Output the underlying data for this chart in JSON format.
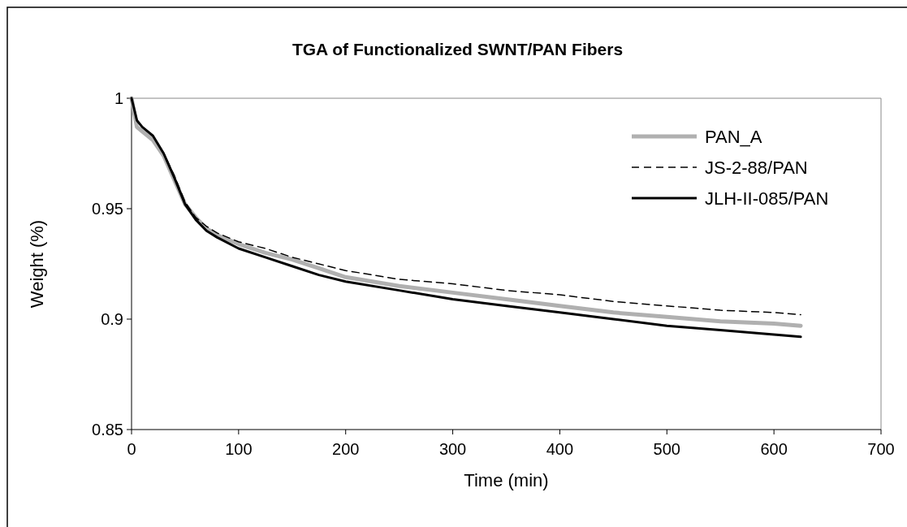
{
  "chart_data": {
    "type": "line",
    "title": "TGA of Functionalized SWNT/PAN Fibers",
    "xlabel": "Time (min)",
    "ylabel": "Weight (%)",
    "x": [
      0,
      5,
      10,
      20,
      30,
      40,
      50,
      60,
      70,
      80,
      100,
      125,
      150,
      175,
      200,
      250,
      300,
      350,
      400,
      450,
      500,
      550,
      600,
      625
    ],
    "series": [
      {
        "name": "PAN_A",
        "color": "#b0b0b0",
        "line_style": "solid",
        "values": [
          1.0,
          0.987,
          0.985,
          0.981,
          0.974,
          0.963,
          0.952,
          0.946,
          0.941,
          0.938,
          0.934,
          0.93,
          0.927,
          0.923,
          0.919,
          0.915,
          0.912,
          0.909,
          0.906,
          0.903,
          0.901,
          0.899,
          0.898,
          0.897
        ]
      },
      {
        "name": "JS-2-88/PAN",
        "color": "#000000",
        "line_style": "dashed",
        "values": [
          1.0,
          0.99,
          0.987,
          0.983,
          0.975,
          0.965,
          0.953,
          0.946,
          0.942,
          0.939,
          0.935,
          0.932,
          0.928,
          0.925,
          0.922,
          0.918,
          0.916,
          0.913,
          0.911,
          0.908,
          0.906,
          0.904,
          0.903,
          0.902
        ]
      },
      {
        "name": "JLH-II-085/PAN",
        "color": "#000000",
        "line_style": "solid",
        "values": [
          1.0,
          0.99,
          0.987,
          0.983,
          0.975,
          0.964,
          0.952,
          0.945,
          0.94,
          0.937,
          0.932,
          0.928,
          0.924,
          0.92,
          0.917,
          0.913,
          0.909,
          0.906,
          0.903,
          0.9,
          0.897,
          0.895,
          0.893,
          0.892
        ]
      }
    ],
    "xlim": [
      0,
      700
    ],
    "xticks": [
      0,
      100,
      200,
      300,
      400,
      500,
      600,
      700
    ],
    "ylim": [
      0.85,
      1
    ],
    "yticks": [
      0.85,
      0.9,
      0.95,
      1
    ],
    "grid": false,
    "legend": "top right",
    "marker": "none"
  }
}
